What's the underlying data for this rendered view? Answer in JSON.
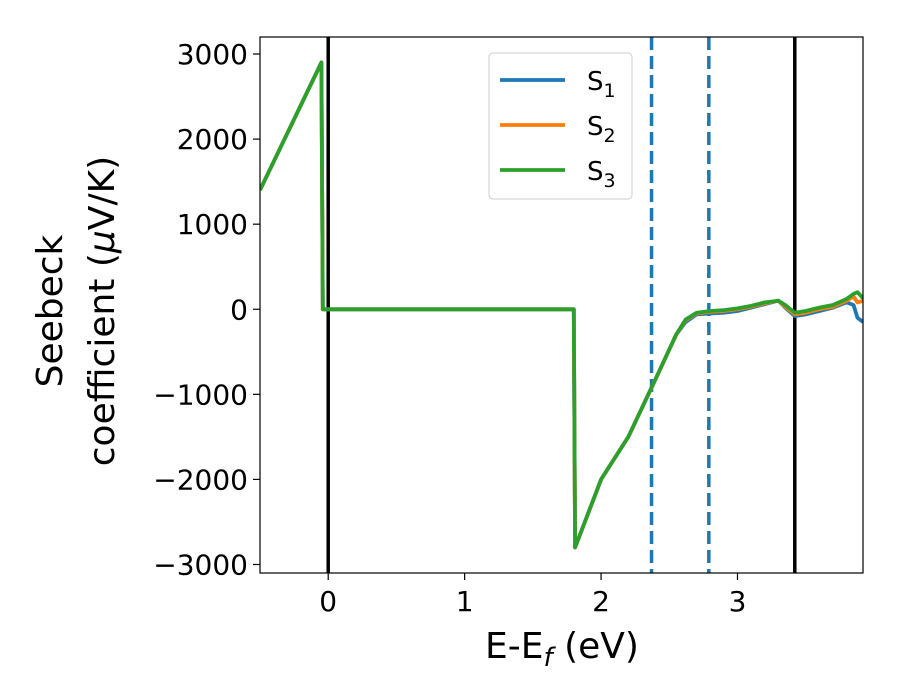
{
  "chart_data": {
    "type": "line",
    "xlabel": "E-E",
    "xlabel_sub": "f",
    "xlabel_unit": " (eV)",
    "ylabel_line1": "Seebeck",
    "ylabel_line2": "coefficient  (",
    "ylabel_mu": "μ",
    "ylabel_unit": "V/K)",
    "xlim": [
      -0.5,
      3.92
    ],
    "ylim": [
      -3100,
      3200
    ],
    "xticks": [
      0,
      1,
      2,
      3
    ],
    "yticks": [
      3000,
      2000,
      1000,
      0,
      -1000,
      -2000,
      -3000
    ],
    "xtick_labels": [
      "0",
      "1",
      "2",
      "3"
    ],
    "ytick_labels": [
      "3000",
      "2000",
      "1000",
      "0",
      "−1000",
      "−2000",
      "−3000"
    ],
    "legend_position": "top-center",
    "vlines_solid": [
      0.0,
      3.42
    ],
    "vlines_dashed": [
      2.37,
      2.79
    ],
    "colors": {
      "vline_solid": "#000000",
      "vline_dashed": "#1f77b4"
    },
    "series": [
      {
        "name": "S",
        "sub": "1",
        "color": "#1f77b4",
        "x": [
          -0.5,
          -0.05,
          -0.04,
          1.8,
          1.81,
          2.0,
          2.2,
          2.4,
          2.55,
          2.62,
          2.7,
          2.8,
          2.9,
          3.0,
          3.1,
          3.2,
          3.3,
          3.35,
          3.42,
          3.5,
          3.6,
          3.7,
          3.8,
          3.85,
          3.88,
          3.92
        ],
        "y": [
          1400,
          2900,
          0,
          0,
          -2800,
          -2000,
          -1500,
          -820,
          -300,
          -150,
          -60,
          -50,
          -40,
          -20,
          20,
          60,
          100,
          20,
          -80,
          -60,
          -20,
          20,
          80,
          50,
          -100,
          -150
        ]
      },
      {
        "name": "S",
        "sub": "2",
        "color": "#ff7f0e",
        "x": [
          -0.5,
          -0.05,
          -0.04,
          1.8,
          1.81,
          2.0,
          2.2,
          2.4,
          2.55,
          2.62,
          2.7,
          2.8,
          2.9,
          3.0,
          3.1,
          3.2,
          3.3,
          3.35,
          3.42,
          3.5,
          3.6,
          3.7,
          3.8,
          3.85,
          3.88,
          3.92
        ],
        "y": [
          1400,
          2900,
          0,
          0,
          -2800,
          -2000,
          -1500,
          -820,
          -300,
          -130,
          -50,
          -30,
          -20,
          0,
          30,
          70,
          100,
          30,
          -60,
          -40,
          0,
          30,
          100,
          150,
          80,
          100
        ]
      },
      {
        "name": "S",
        "sub": "3",
        "color": "#2ca02c",
        "x": [
          -0.5,
          -0.05,
          -0.04,
          1.8,
          1.81,
          2.0,
          2.2,
          2.4,
          2.55,
          2.62,
          2.7,
          2.8,
          2.9,
          3.0,
          3.1,
          3.2,
          3.3,
          3.35,
          3.42,
          3.5,
          3.6,
          3.7,
          3.8,
          3.85,
          3.88,
          3.92
        ],
        "y": [
          1400,
          2900,
          0,
          0,
          -2800,
          -2000,
          -1500,
          -820,
          -300,
          -120,
          -40,
          -20,
          -10,
          10,
          40,
          80,
          100,
          50,
          -40,
          -20,
          20,
          50,
          120,
          180,
          200,
          130
        ]
      }
    ]
  }
}
